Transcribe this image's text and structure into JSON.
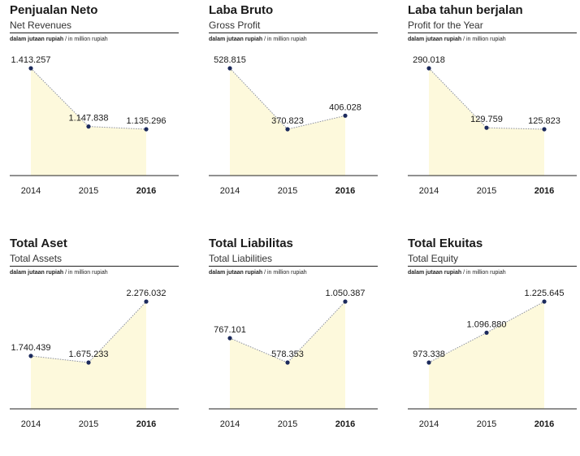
{
  "unit_text": {
    "id": "dalam jutaan rupiah",
    "en": "/ in million rupiah"
  },
  "colors": {
    "fill": "#fdf9dc",
    "line": "#8a8f9e",
    "point": "#1c2a5c",
    "rule": "#222222"
  },
  "chart_data": [
    {
      "type": "area",
      "title": "Penjualan Neto",
      "subtitle": "Net Revenues",
      "categories": [
        "2014",
        "2015",
        "2016"
      ],
      "values": [
        1413257,
        1147838,
        1135296
      ],
      "labels": [
        "1.413.257",
        "1.147.838",
        "1.135.296"
      ],
      "highlight_category": "2016"
    },
    {
      "type": "area",
      "title": "Laba Bruto",
      "subtitle": "Gross Profit",
      "categories": [
        "2014",
        "2015",
        "2016"
      ],
      "values": [
        528815,
        370823,
        406028
      ],
      "labels": [
        "528.815",
        "370.823",
        "406.028"
      ],
      "highlight_category": "2016"
    },
    {
      "type": "area",
      "title": "Laba tahun berjalan",
      "subtitle": "Profit for the Year",
      "categories": [
        "2014",
        "2015",
        "2016"
      ],
      "values": [
        290018,
        129759,
        125823
      ],
      "labels": [
        "290.018",
        "129.759",
        "125.823"
      ],
      "highlight_category": "2016"
    },
    {
      "type": "area",
      "title": "Total Aset",
      "subtitle": "Total Assets",
      "categories": [
        "2014",
        "2015",
        "2016"
      ],
      "values": [
        1740439,
        1675233,
        2276032
      ],
      "labels": [
        "1.740.439",
        "1.675.233",
        "2.276.032"
      ],
      "highlight_category": "2016"
    },
    {
      "type": "area",
      "title": "Total Liabilitas",
      "subtitle": "Total Liabilities",
      "categories": [
        "2014",
        "2015",
        "2016"
      ],
      "values": [
        767101,
        578353,
        1050387
      ],
      "labels": [
        "767.101",
        "578.353",
        "1.050.387"
      ],
      "highlight_category": "2016"
    },
    {
      "type": "area",
      "title": "Total Ekuitas",
      "subtitle": "Total Equity",
      "categories": [
        "2014",
        "2015",
        "2016"
      ],
      "values": [
        973338,
        1096880,
        1225645
      ],
      "labels": [
        "973.338",
        "1.096.880",
        "1.225.645"
      ],
      "highlight_category": "2016"
    }
  ]
}
